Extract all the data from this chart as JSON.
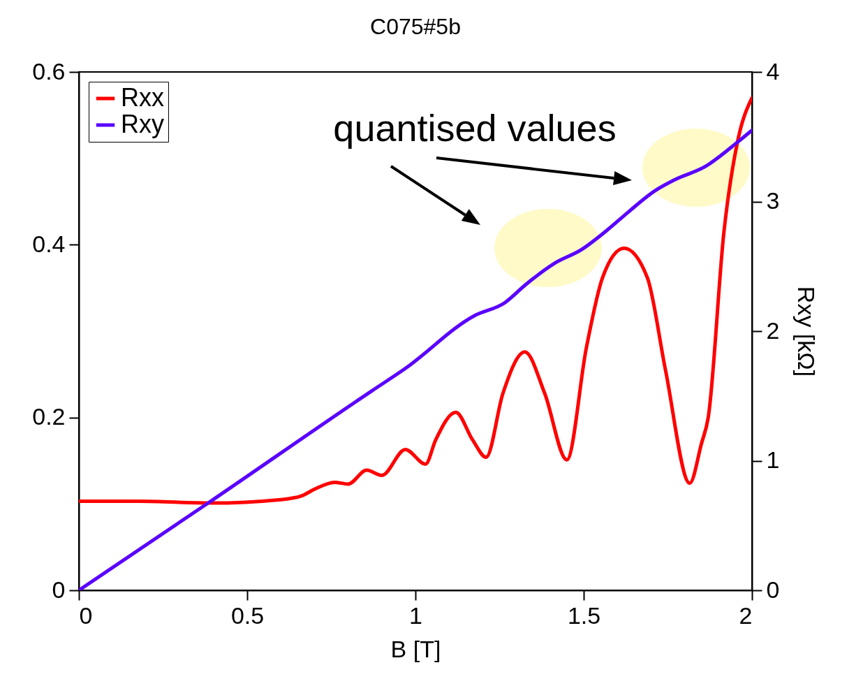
{
  "chart_data": {
    "type": "line",
    "title": "C075#5b",
    "xlabel": "B [T]",
    "y2label": "Rxy [kΩ]",
    "xlim": [
      0,
      2
    ],
    "xticks": [
      0,
      0.5,
      1,
      1.5,
      2
    ],
    "ylim": [
      0,
      0.6
    ],
    "yticks": [
      0,
      0.2,
      0.4,
      0.6
    ],
    "y2lim": [
      0,
      4
    ],
    "y2ticks": [
      0,
      1,
      2,
      3,
      4
    ],
    "grid": false,
    "legend": "top left",
    "marker": "none",
    "line_style": "solid",
    "annotations": [
      "quantised values"
    ],
    "series": [
      {
        "name": "Rxx",
        "color": "#ff0000",
        "x": [
          0,
          0.18,
          0.39,
          0.6,
          0.66,
          0.7,
          0.76,
          0.8,
          0.855,
          0.9,
          0.97,
          1.03,
          1.06,
          1.12,
          1.17,
          1.21,
          1.26,
          1.325,
          1.384,
          1.45,
          1.508,
          1.556,
          1.62,
          1.689,
          1.743,
          1.815,
          1.85,
          1.87,
          1.917,
          1.958,
          2
        ],
        "values": [
          0.103,
          0.103,
          0.101,
          0.105,
          0.109,
          0.117,
          0.125,
          0.123,
          0.139,
          0.133,
          0.163,
          0.146,
          0.174,
          0.206,
          0.174,
          0.154,
          0.228,
          0.276,
          0.228,
          0.151,
          0.281,
          0.362,
          0.396,
          0.362,
          0.255,
          0.124,
          0.17,
          0.2,
          0.416,
          0.521,
          0.57
        ]
      },
      {
        "name": "Rxy",
        "color": "#5a00ff",
        "axis": "y2",
        "x": [
          0,
          0.382,
          0.871,
          0.969,
          1.176,
          1.266,
          1.328,
          1.411,
          1.494,
          1.57,
          1.633,
          1.71,
          1.772,
          1.861,
          1.958,
          2
        ],
        "values": [
          0,
          0.67,
          1.54,
          1.71,
          2.12,
          2.22,
          2.36,
          2.52,
          2.63,
          2.78,
          2.92,
          3.08,
          3.17,
          3.27,
          3.46,
          3.55
        ]
      }
    ]
  }
}
